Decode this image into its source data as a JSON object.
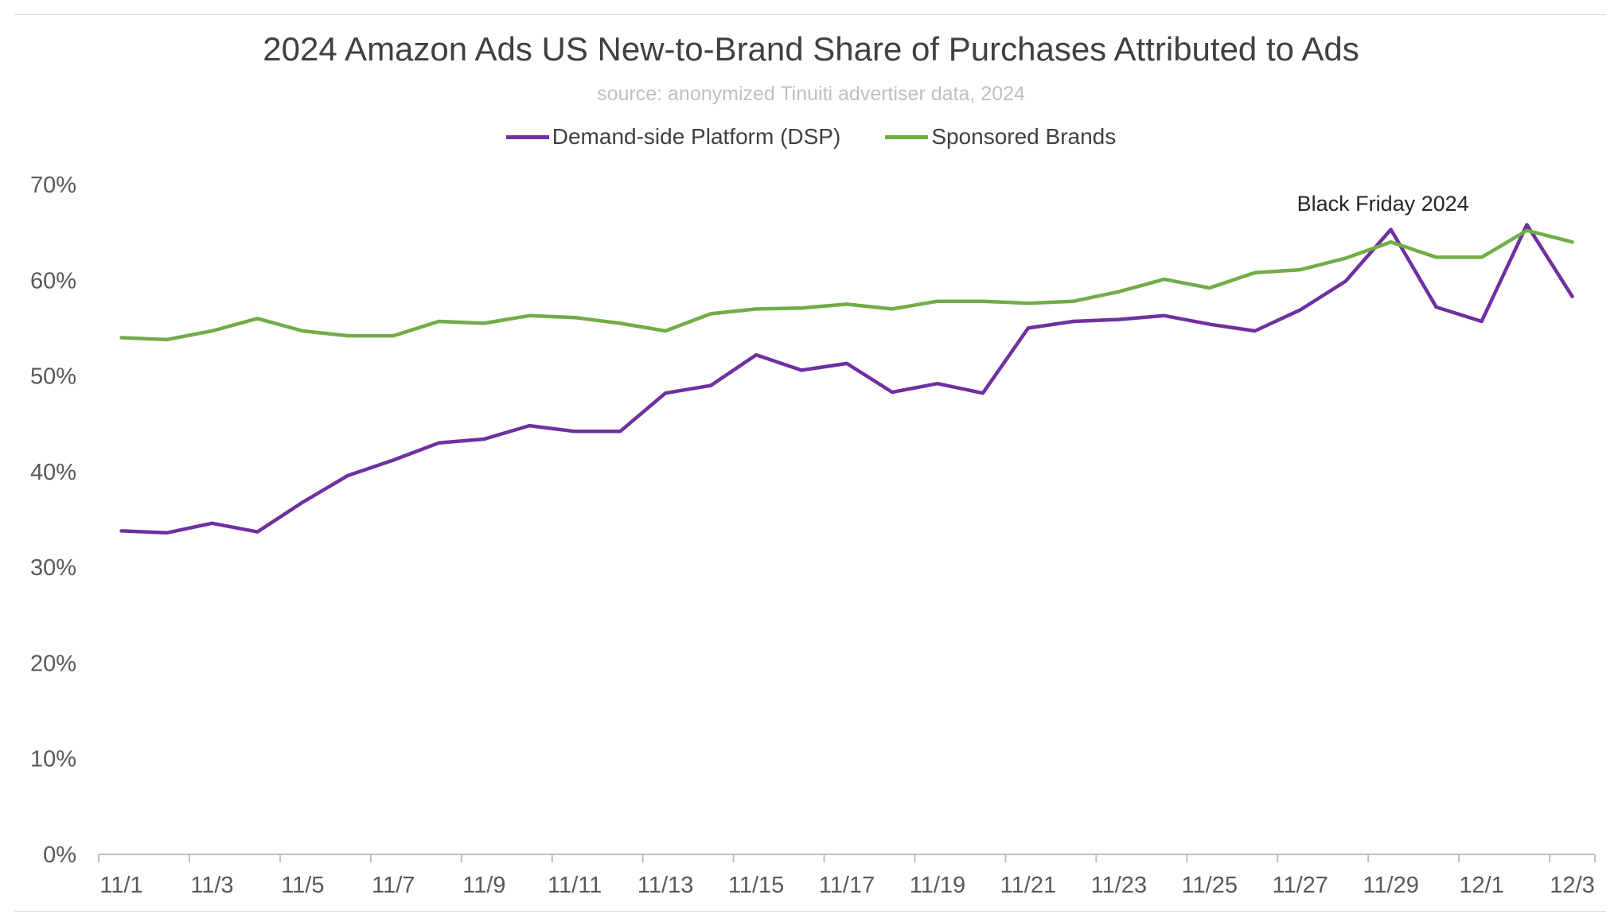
{
  "chart_data": {
    "type": "line",
    "title": "2024 Amazon Ads US New-to-Brand Share of Purchases Attributed to Ads",
    "subtitle": "source: anonymized Tinuiti advertiser data, 2024",
    "xlabel": "",
    "ylabel": "",
    "ylim": [
      0,
      70
    ],
    "yticks": [
      "0%",
      "10%",
      "20%",
      "30%",
      "40%",
      "50%",
      "60%",
      "70%"
    ],
    "ytick_values": [
      0,
      10,
      20,
      30,
      40,
      50,
      60,
      70
    ],
    "legend_position": "top",
    "grid": false,
    "x": [
      "11/1",
      "11/2",
      "11/3",
      "11/4",
      "11/5",
      "11/6",
      "11/7",
      "11/8",
      "11/9",
      "11/10",
      "11/11",
      "11/12",
      "11/13",
      "11/14",
      "11/15",
      "11/16",
      "11/17",
      "11/18",
      "11/19",
      "11/20",
      "11/21",
      "11/22",
      "11/23",
      "11/24",
      "11/25",
      "11/26",
      "11/27",
      "11/28",
      "11/29",
      "11/30",
      "12/1",
      "12/2",
      "12/3"
    ],
    "xtick_labels": [
      "11/1",
      "11/3",
      "11/5",
      "11/7",
      "11/9",
      "11/11",
      "11/13",
      "11/15",
      "11/17",
      "11/19",
      "11/21",
      "11/23",
      "11/25",
      "11/27",
      "11/29",
      "12/1",
      "12/3"
    ],
    "series": [
      {
        "name": "Demand-side Platform (DSP)",
        "color": "#7030a0",
        "values": [
          33.8,
          33.6,
          34.6,
          33.7,
          36.8,
          39.6,
          41.2,
          43.0,
          43.4,
          44.8,
          44.2,
          44.2,
          48.2,
          49.0,
          52.2,
          50.6,
          51.3,
          48.3,
          49.2,
          48.2,
          55.0,
          55.7,
          55.9,
          56.3,
          55.4,
          54.7,
          56.9,
          59.9,
          65.3,
          57.2,
          55.7,
          65.8,
          58.3
        ]
      },
      {
        "name": "Sponsored Brands",
        "color": "#70ad47",
        "values": [
          54.0,
          53.8,
          54.7,
          56.0,
          54.7,
          54.2,
          54.2,
          55.7,
          55.5,
          56.3,
          56.1,
          55.5,
          54.7,
          56.5,
          57.0,
          57.1,
          57.5,
          57.0,
          57.8,
          57.8,
          57.6,
          57.8,
          58.8,
          60.1,
          59.2,
          60.8,
          61.1,
          62.3,
          64.0,
          62.4,
          62.4,
          65.2,
          64.0
        ]
      }
    ],
    "annotations": [
      {
        "text": "Black Friday 2024",
        "x": "11/29"
      }
    ]
  }
}
